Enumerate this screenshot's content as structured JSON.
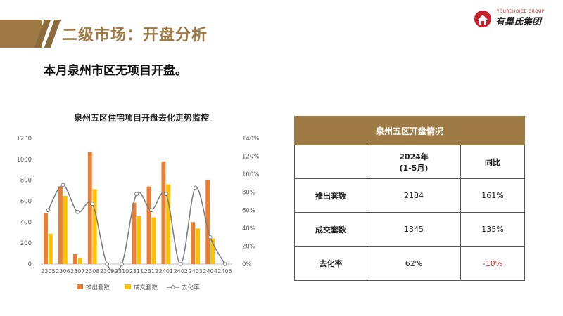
{
  "header": {
    "title": "二级市场：开盘分析",
    "logo_en": "YOURCHOICE GROUP",
    "logo_cn": "有巢氏集团",
    "summary": "本月泉州市区无项目开盘。"
  },
  "colors": {
    "brand_gold": "#9e7a45",
    "bar_launch": "#ed7d31",
    "bar_deal": "#ffc000",
    "line_rate": "#a5a5a5",
    "negative": "#e02020"
  },
  "chart_data": {
    "type": "bar",
    "title": "泉州五区住宅项目开盘去化走势监控",
    "categories": [
      "2305",
      "2306",
      "2307",
      "2308",
      "2309",
      "2310",
      "2311",
      "2312",
      "2401",
      "2402",
      "2403",
      "2404",
      "2405"
    ],
    "series": [
      {
        "name": "推出套数",
        "kind": "bar",
        "axis": "left",
        "values": [
          485,
          740,
          95,
          1070,
          0,
          0,
          585,
          740,
          980,
          0,
          400,
          805,
          0
        ]
      },
      {
        "name": "成交套数",
        "kind": "bar",
        "axis": "left",
        "values": [
          290,
          650,
          55,
          715,
          0,
          0,
          455,
          445,
          760,
          0,
          340,
          245,
          0
        ]
      },
      {
        "name": "去化率",
        "kind": "line",
        "axis": "right",
        "values": [
          0.6,
          0.88,
          0.58,
          0.67,
          0,
          0,
          0.78,
          0.6,
          0.78,
          0,
          0.85,
          0.3,
          0
        ]
      }
    ],
    "y_left": {
      "min": 0,
      "max": 1200,
      "step": 200,
      "ticks": [
        "0",
        "200",
        "400",
        "600",
        "800",
        "1000",
        "1200"
      ]
    },
    "y_right": {
      "min": 0,
      "max": 1.4,
      "step": 0.2,
      "ticks": [
        "0%",
        "20%",
        "40%",
        "60%",
        "80%",
        "100%",
        "120%",
        "140%"
      ]
    },
    "legend": [
      "推出套数",
      "成交套数",
      "去化率"
    ],
    "legend_position": "bottom",
    "grid": false
  },
  "table": {
    "title": "泉州五区开盘情况",
    "col1_head": "2024年\n(1-5月)",
    "col2_head": "同比",
    "rows": [
      {
        "label": "推出套数",
        "value": "2184",
        "yoy": "161%"
      },
      {
        "label": "成交套数",
        "value": "1345",
        "yoy": "135%"
      },
      {
        "label": "去化率",
        "value": "62%",
        "yoy": "-10%"
      }
    ]
  }
}
